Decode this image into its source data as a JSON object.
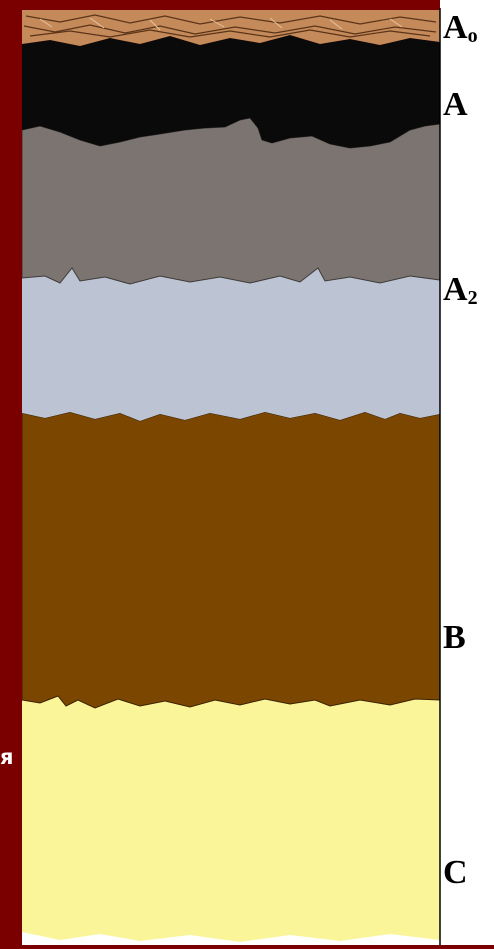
{
  "horizons": [
    {
      "key": "ao",
      "name": "A",
      "sub": "o",
      "color": "#c58a5a"
    },
    {
      "key": "a",
      "name": "A",
      "sub": "",
      "color": "#0a0a0a"
    },
    {
      "key": "a1",
      "name": "",
      "sub": "",
      "color": "#7c7470"
    },
    {
      "key": "a2",
      "name": "A",
      "sub": "2",
      "color": "#bcc4d4"
    },
    {
      "key": "b",
      "name": "B",
      "sub": "",
      "color": "#7b4600"
    },
    {
      "key": "c",
      "name": "C",
      "sub": "",
      "color": "#fbf59a"
    }
  ],
  "left_panel": {
    "cut_text": "я",
    "background": "#7a0000"
  },
  "colors": {
    "side_strip": "#ffffff",
    "edge_line": "#000000"
  }
}
